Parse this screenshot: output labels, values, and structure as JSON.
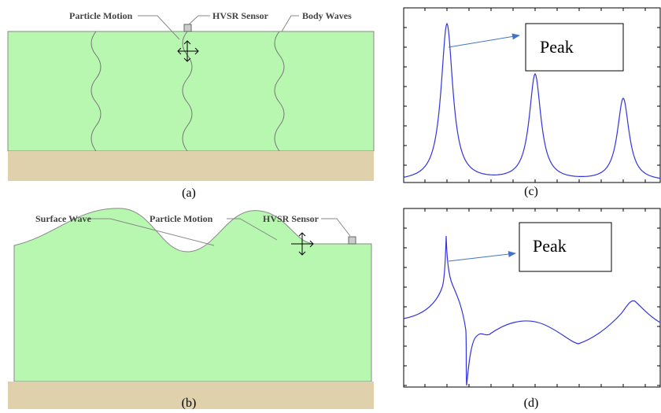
{
  "panel_a": {
    "labels": [
      "Particle Motion",
      "HVSR Sensor",
      "Body Waves"
    ],
    "caption": "(a)"
  },
  "panel_b": {
    "labels": [
      "Surface Wave",
      "Particle Motion",
      "HVSR Sensor"
    ],
    "caption": "(b)"
  },
  "panel_c": {
    "annotation": "Peak",
    "caption": "(c)"
  },
  "panel_d": {
    "annotation": "Peak",
    "caption": "(d)"
  }
}
